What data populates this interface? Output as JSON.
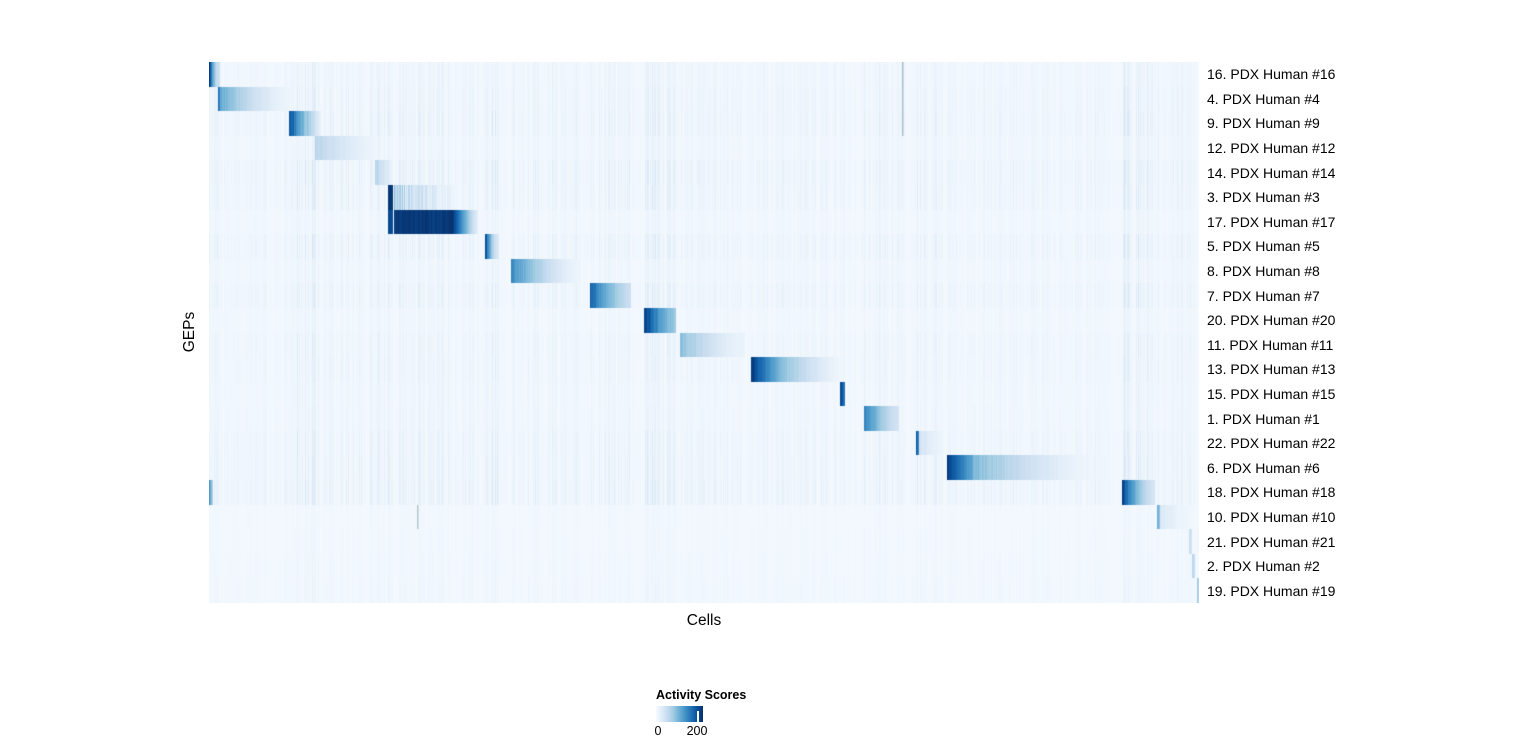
{
  "figure": {
    "xlabel": "Cells",
    "ylabel": "GEPs"
  },
  "legend": {
    "title": "Activity Scores",
    "tick_min": "0",
    "tick_max": "200",
    "tick_max_frac": 0.891,
    "colormap_name": "Blues"
  },
  "chart_data": {
    "type": "heatmap",
    "xlabel": "Cells",
    "ylabel": "GEPs",
    "legend_title": "Activity Scores",
    "legend_ticks": [
      0,
      200
    ],
    "value_range": [
      0,
      250
    ],
    "background_value": 6,
    "colormap": {
      "name": "Blues",
      "stops": [
        "#f7fbff",
        "#deebf7",
        "#c6dbef",
        "#9ecae1",
        "#6baed6",
        "#4292c6",
        "#2171b5",
        "#08519c",
        "#08306b"
      ]
    },
    "rows": [
      "16. PDX Human #16",
      "4. PDX Human #4",
      "9. PDX Human #9",
      "12. PDX Human #12",
      "14. PDX Human #14",
      "3. PDX Human #3",
      "17. PDX Human #17",
      "5. PDX Human #5",
      "8. PDX Human #8",
      "7. PDX Human #7",
      "20. PDX Human #20",
      "11. PDX Human #11",
      "13. PDX Human #13",
      "15. PDX Human #15",
      "1. PDX Human #1",
      "22. PDX Human #22",
      "6. PDX Human #6",
      "18. PDX Human #18",
      "10. PDX Human #10",
      "21. PDX Human #21",
      "2. PDX Human #2",
      "19. PDX Human #19"
    ],
    "row_blocks": [
      [
        [
          0.0,
          0.0115,
          250,
          55,
          1.8,
          0.15
        ]
      ],
      [
        [
          0.009,
          0.0125,
          200,
          140,
          1,
          0
        ],
        [
          0.0125,
          0.081,
          135,
          15,
          1.5,
          0.12
        ]
      ],
      [
        [
          0.081,
          0.099,
          245,
          110,
          1.1,
          0.18
        ],
        [
          0.099,
          0.113,
          110,
          22,
          1,
          0.2
        ]
      ],
      [
        [
          0.107,
          0.168,
          80,
          15,
          1.35,
          0.15
        ]
      ],
      [
        [
          0.168,
          0.184,
          85,
          30,
          1.2,
          0.35
        ]
      ],
      [
        [
          0.1805,
          0.1855,
          250,
          245,
          1,
          0
        ],
        [
          0.187,
          0.25,
          115,
          20,
          1.25,
          0.72
        ]
      ],
      [
        [
          0.1805,
          0.1855,
          235,
          230,
          1,
          0
        ],
        [
          0.187,
          0.2465,
          252,
          252,
          1,
          0.03
        ],
        [
          0.2465,
          0.2715,
          250,
          28,
          1.15,
          0.05
        ]
      ],
      [
        [
          0.279,
          0.2925,
          252,
          40,
          1.8,
          0.1
        ]
      ],
      [
        [
          0.305,
          0.375,
          180,
          16,
          1.6,
          0.12
        ]
      ],
      [
        [
          0.385,
          0.426,
          215,
          60,
          1.35,
          0.1
        ]
      ],
      [
        [
          0.439,
          0.472,
          252,
          100,
          1.4,
          0.08
        ]
      ],
      [
        [
          0.476,
          0.541,
          120,
          18,
          1.6,
          0.16
        ]
      ],
      [
        [
          0.547,
          0.579,
          252,
          112,
          1.05,
          0.05
        ],
        [
          0.579,
          0.637,
          112,
          13,
          1.3,
          0.12
        ]
      ],
      [
        [
          0.637,
          0.642,
          235,
          185,
          1,
          0
        ]
      ],
      [
        [
          0.662,
          0.697,
          190,
          50,
          1.45,
          0.1
        ]
      ],
      [
        [
          0.714,
          0.7175,
          215,
          175,
          1,
          0
        ],
        [
          0.7175,
          0.741,
          52,
          15,
          1.2,
          0.3
        ]
      ],
      [
        [
          0.745,
          0.772,
          252,
          140,
          1.1,
          0.05
        ],
        [
          0.772,
          0.905,
          126,
          7,
          1.55,
          0.16
        ]
      ],
      [
        [
          0.0,
          0.004,
          150,
          85,
          1,
          0
        ],
        [
          0.922,
          0.956,
          250,
          48,
          1.6,
          0.12
        ]
      ],
      [
        [
          0.9575,
          0.9608,
          130,
          112,
          1,
          0
        ],
        [
          0.9608,
          0.995,
          40,
          9,
          1.35,
          0.25
        ]
      ],
      [
        [
          0.9896,
          0.9926,
          60,
          50,
          1,
          0
        ]
      ],
      [
        [
          0.9926,
          0.9958,
          75,
          62,
          1,
          0
        ]
      ],
      [
        [
          0.9978,
          1.0,
          95,
          80,
          1,
          0
        ]
      ]
    ],
    "stripe_bands": [
      [
        0.0,
        0.011,
        22
      ],
      [
        0.011,
        0.081,
        14
      ],
      [
        0.081,
        0.108,
        52
      ],
      [
        0.108,
        0.168,
        26
      ],
      [
        0.168,
        0.181,
        38
      ],
      [
        0.181,
        0.186,
        42
      ],
      [
        0.186,
        0.272,
        26
      ],
      [
        0.272,
        0.279,
        7
      ],
      [
        0.279,
        0.293,
        42
      ],
      [
        0.293,
        0.305,
        10
      ],
      [
        0.305,
        0.375,
        26
      ],
      [
        0.375,
        0.385,
        9
      ],
      [
        0.385,
        0.426,
        26
      ],
      [
        0.426,
        0.439,
        7
      ],
      [
        0.439,
        0.472,
        38
      ],
      [
        0.472,
        0.476,
        6
      ],
      [
        0.476,
        0.541,
        18
      ],
      [
        0.541,
        0.547,
        6
      ],
      [
        0.547,
        0.637,
        18
      ],
      [
        0.637,
        0.643,
        28
      ],
      [
        0.643,
        0.662,
        9
      ],
      [
        0.662,
        0.697,
        28
      ],
      [
        0.697,
        0.714,
        11
      ],
      [
        0.714,
        0.741,
        32
      ],
      [
        0.741,
        0.905,
        18
      ],
      [
        0.905,
        0.922,
        7
      ],
      [
        0.922,
        0.956,
        55
      ],
      [
        0.956,
        0.995,
        22
      ],
      [
        0.995,
        1.0,
        10
      ]
    ],
    "row_stripe_strength": [
      0.55,
      0.75,
      0.9,
      0.5,
      1.0,
      0.85,
      0.35,
      0.9,
      0.45,
      0.85,
      0.35,
      0.65,
      0.65,
      0.45,
      0.5,
      0.8,
      0.85,
      1.0,
      0.15,
      0.18,
      0.22,
      0.28
    ],
    "gray_lines": [
      {
        "x": 0.7,
        "row_start": 0,
        "row_end": 2,
        "color": "#a8bfce"
      },
      {
        "x": 0.21,
        "row_start": 18,
        "row_end": 18,
        "color": "#b6c5d1"
      }
    ]
  }
}
